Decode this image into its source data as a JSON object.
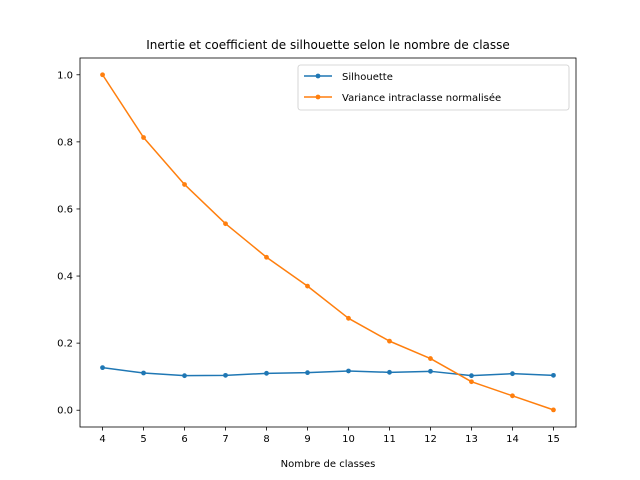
{
  "chart_data": {
    "type": "line",
    "title": "Inertie et coefficient de silhouette selon le nombre de classe",
    "xlabel": "Nombre de classes",
    "ylabel": "",
    "x": [
      4,
      5,
      6,
      7,
      8,
      9,
      10,
      11,
      12,
      13,
      14,
      15
    ],
    "xticks": [
      "4",
      "5",
      "6",
      "7",
      "8",
      "9",
      "10",
      "11",
      "12",
      "13",
      "14",
      "15"
    ],
    "yticks": [
      "0.0",
      "0.2",
      "0.4",
      "0.6",
      "0.8",
      "1.0"
    ],
    "xlim": [
      3.45,
      15.55
    ],
    "ylim": [
      -0.05,
      1.05
    ],
    "grid": false,
    "legend_position": "top-right",
    "series": [
      {
        "name": "Silhouette",
        "color": "#1f77b4",
        "values": [
          0.127,
          0.111,
          0.103,
          0.104,
          0.11,
          0.112,
          0.117,
          0.113,
          0.116,
          0.103,
          0.109,
          0.104
        ]
      },
      {
        "name": "Variance intraclasse normalisée",
        "color": "#ff7f0e",
        "values": [
          1.0,
          0.813,
          0.673,
          0.556,
          0.456,
          0.37,
          0.274,
          0.206,
          0.154,
          0.085,
          0.043,
          0.001
        ]
      }
    ]
  }
}
